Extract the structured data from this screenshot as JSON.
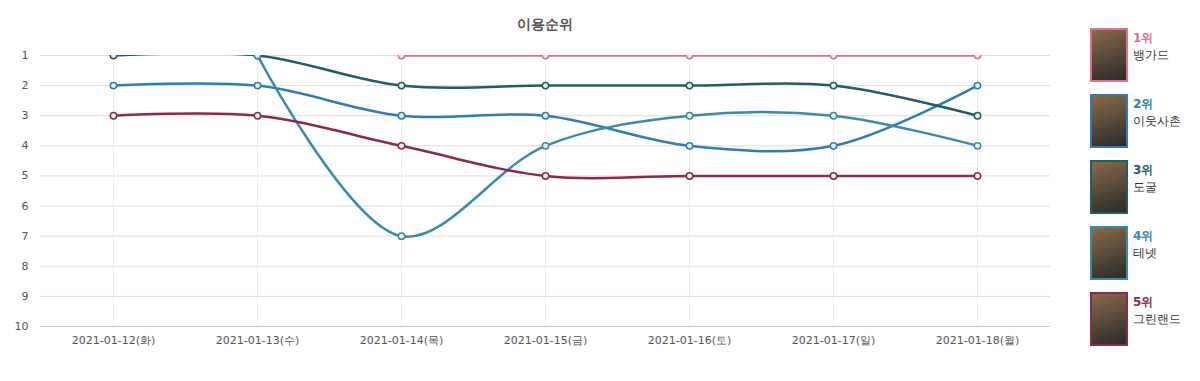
{
  "chart_data": {
    "type": "line",
    "title": "이용순위",
    "categories": [
      "2021-01-12(화)",
      "2021-01-13(수)",
      "2021-01-14(목)",
      "2021-01-15(금)",
      "2021-01-16(토)",
      "2021-01-17(일)",
      "2021-01-18(월)"
    ],
    "ylim": [
      10,
      1
    ],
    "yticks": [
      1,
      2,
      3,
      4,
      5,
      6,
      7,
      8,
      9,
      10
    ],
    "grid": true,
    "legend": "right",
    "marker": "circle",
    "series": [
      {
        "name": "뱅가드",
        "label": "1위",
        "color": "#e07090",
        "values": [
          null,
          null,
          1,
          1,
          1,
          1,
          1
        ]
      },
      {
        "name": "이웃사촌",
        "label": "2위",
        "color": "#2f7db5",
        "values": [
          2,
          2,
          3,
          3,
          4,
          4,
          2
        ]
      },
      {
        "name": "도굴",
        "label": "3위",
        "color": "#1f5f5f",
        "values": [
          1,
          1,
          2,
          2,
          2,
          2,
          3
        ]
      },
      {
        "name": "테넷",
        "label": "4위",
        "color": "#3a8aa8",
        "values": [
          null,
          1,
          7,
          4,
          3,
          3,
          4
        ]
      },
      {
        "name": "그린랜드",
        "label": "5위",
        "color": "#8b2a50",
        "values": [
          3,
          3,
          4,
          5,
          5,
          5,
          5
        ]
      }
    ]
  }
}
